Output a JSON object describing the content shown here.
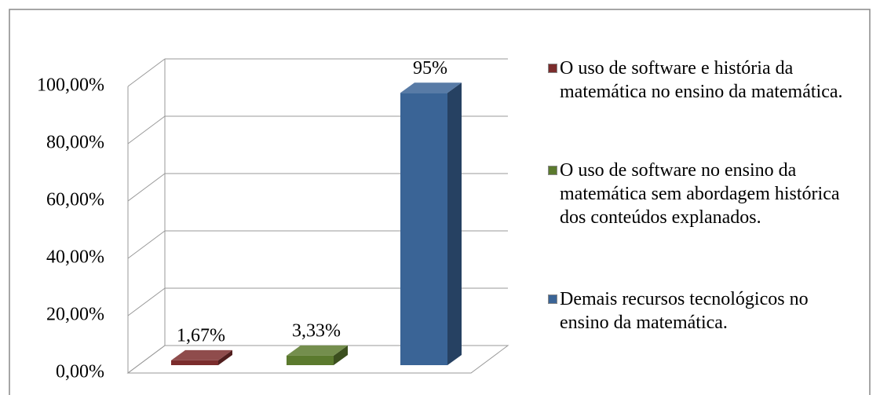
{
  "chart_data": {
    "type": "bar3d",
    "categories": [
      null
    ],
    "ylim": [
      0,
      100
    ],
    "yticks": [
      {
        "value": 0,
        "label": "0,00%"
      },
      {
        "value": 20,
        "label": "20,00%"
      },
      {
        "value": 40,
        "label": "40,00%"
      },
      {
        "value": 60,
        "label": "60,00%"
      },
      {
        "value": 80,
        "label": "80,00%"
      },
      {
        "value": 100,
        "label": "100,00%"
      }
    ],
    "grid": true,
    "legend": "right",
    "series": [
      {
        "name": "O uso de software e história da matemática no ensino da matemática.",
        "color": "#7b2c2c",
        "values": [
          1.67
        ],
        "value_labels": [
          "1,67%"
        ]
      },
      {
        "name": "O uso de software no ensino da matemática sem abordagem histórica dos conteúdos explanados.",
        "color": "#5b7a2e",
        "values": [
          3.33
        ],
        "value_labels": [
          "3,33%"
        ]
      },
      {
        "name": "Demais recursos tecnológicos no ensino da matemática.",
        "color": "#3a6496",
        "values": [
          95
        ],
        "value_labels": [
          "95%"
        ]
      }
    ]
  }
}
